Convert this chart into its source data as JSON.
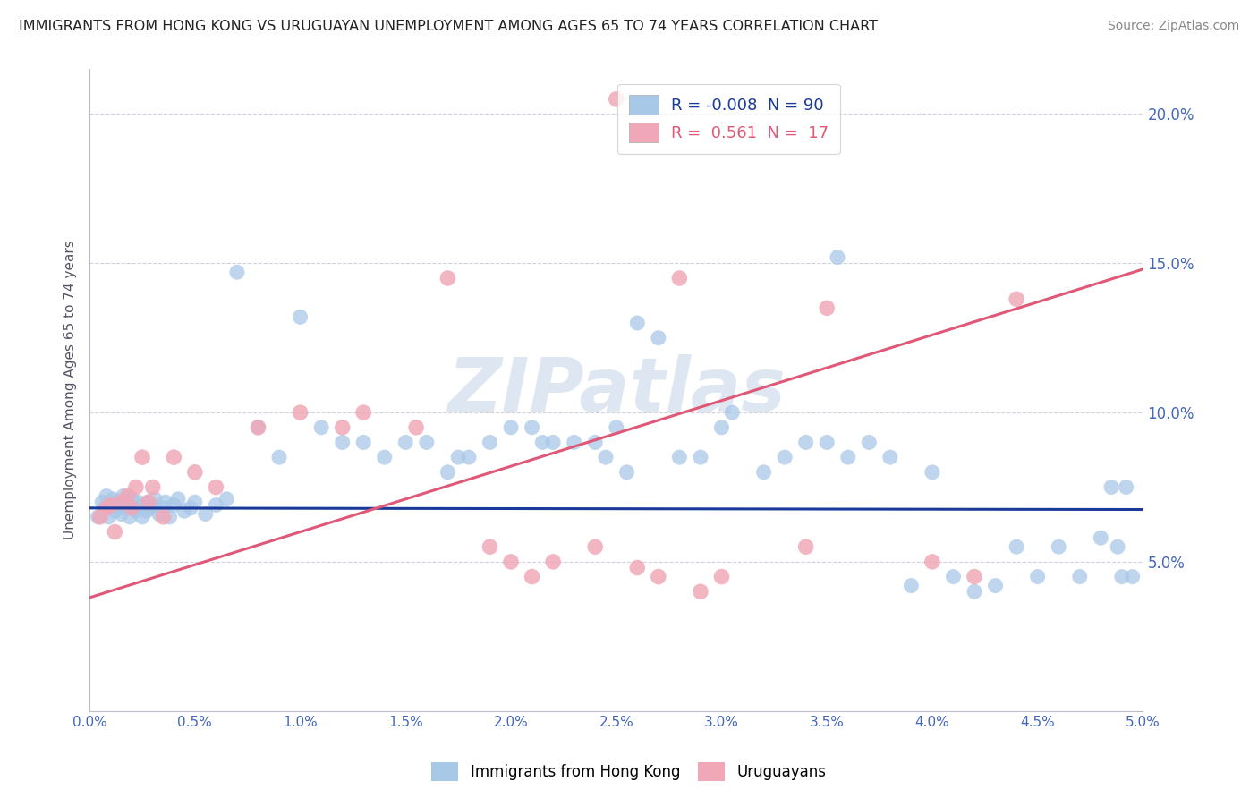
{
  "title": "IMMIGRANTS FROM HONG KONG VS URUGUAYAN UNEMPLOYMENT AMONG AGES 65 TO 74 YEARS CORRELATION CHART",
  "source_text": "Source: ZipAtlas.com",
  "ylabel": "Unemployment Among Ages 65 to 74 years",
  "xlim": [
    0.0,
    5.0
  ],
  "ylim": [
    0.0,
    21.5
  ],
  "watermark": "ZIPatlas",
  "blue_color": "#a8c8e8",
  "pink_color": "#f0a8b8",
  "blue_line_color": "#1a3a9a",
  "pink_line_color": "#e05878",
  "axis_color": "#4466bb",
  "grid_color": "#d0d0e0",
  "watermark_color": "#c8d8e8",
  "background_color": "#ffffff",
  "blue_line_y0": 6.8,
  "blue_line_y1": 6.75,
  "pink_line_y0": 3.8,
  "pink_line_y1": 14.8,
  "blue_x": [
    0.04,
    0.06,
    0.07,
    0.08,
    0.09,
    0.1,
    0.11,
    0.12,
    0.13,
    0.14,
    0.15,
    0.16,
    0.17,
    0.18,
    0.19,
    0.2,
    0.21,
    0.22,
    0.23,
    0.25,
    0.26,
    0.27,
    0.28,
    0.29,
    0.3,
    0.31,
    0.33,
    0.35,
    0.36,
    0.38,
    0.4,
    0.42,
    0.45,
    0.48,
    0.5,
    0.55,
    0.6,
    0.65,
    0.7,
    0.8,
    0.9,
    1.0,
    1.1,
    1.2,
    1.3,
    1.4,
    1.5,
    1.6,
    1.7,
    1.75,
    1.8,
    1.9,
    2.0,
    2.1,
    2.15,
    2.2,
    2.3,
    2.4,
    2.45,
    2.5,
    2.55,
    2.6,
    2.7,
    2.8,
    2.9,
    3.0,
    3.05,
    3.2,
    3.3,
    3.4,
    3.5,
    3.55,
    3.6,
    3.7,
    3.8,
    3.9,
    4.0,
    4.1,
    4.2,
    4.3,
    4.4,
    4.5,
    4.6,
    4.7,
    4.8,
    4.85,
    4.88,
    4.9,
    4.92,
    4.95
  ],
  "blue_y": [
    6.5,
    7.0,
    6.8,
    7.2,
    6.5,
    6.9,
    7.1,
    6.7,
    7.0,
    6.8,
    6.6,
    7.2,
    6.9,
    7.0,
    6.5,
    7.1,
    6.8,
    6.7,
    7.0,
    6.5,
    6.9,
    6.7,
    7.0,
    6.8,
    6.9,
    7.1,
    6.6,
    6.8,
    7.0,
    6.5,
    6.9,
    7.1,
    6.7,
    6.8,
    7.0,
    6.6,
    6.9,
    7.1,
    14.7,
    9.5,
    8.5,
    13.2,
    9.5,
    9.0,
    9.0,
    8.5,
    9.0,
    9.0,
    8.0,
    8.5,
    8.5,
    9.0,
    9.5,
    9.5,
    9.0,
    9.0,
    9.0,
    9.0,
    8.5,
    9.5,
    8.0,
    13.0,
    12.5,
    8.5,
    8.5,
    9.5,
    10.0,
    8.0,
    8.5,
    9.0,
    9.0,
    15.2,
    8.5,
    9.0,
    8.5,
    4.2,
    8.0,
    4.5,
    4.0,
    4.2,
    5.5,
    4.5,
    5.5,
    4.5,
    5.8,
    7.5,
    5.5,
    4.5,
    7.5,
    4.5
  ],
  "pink_x": [
    0.05,
    0.08,
    0.1,
    0.12,
    0.15,
    0.18,
    0.2,
    0.22,
    0.25,
    0.28,
    0.3,
    0.35,
    0.4,
    0.5,
    0.6,
    0.8,
    1.0,
    1.2,
    1.3,
    1.55,
    1.7,
    1.9,
    2.0,
    2.1,
    2.2,
    2.4,
    2.5,
    2.6,
    2.7,
    2.8,
    2.9,
    3.0,
    3.4,
    3.5,
    4.0,
    4.2,
    4.4
  ],
  "pink_y": [
    6.5,
    6.8,
    6.9,
    6.0,
    7.0,
    7.2,
    6.8,
    7.5,
    8.5,
    7.0,
    7.5,
    6.5,
    8.5,
    8.0,
    7.5,
    9.5,
    10.0,
    9.5,
    10.0,
    9.5,
    14.5,
    5.5,
    5.0,
    4.5,
    5.0,
    5.5,
    20.5,
    4.8,
    4.5,
    14.5,
    4.0,
    4.5,
    5.5,
    13.5,
    5.0,
    4.5,
    13.8
  ]
}
